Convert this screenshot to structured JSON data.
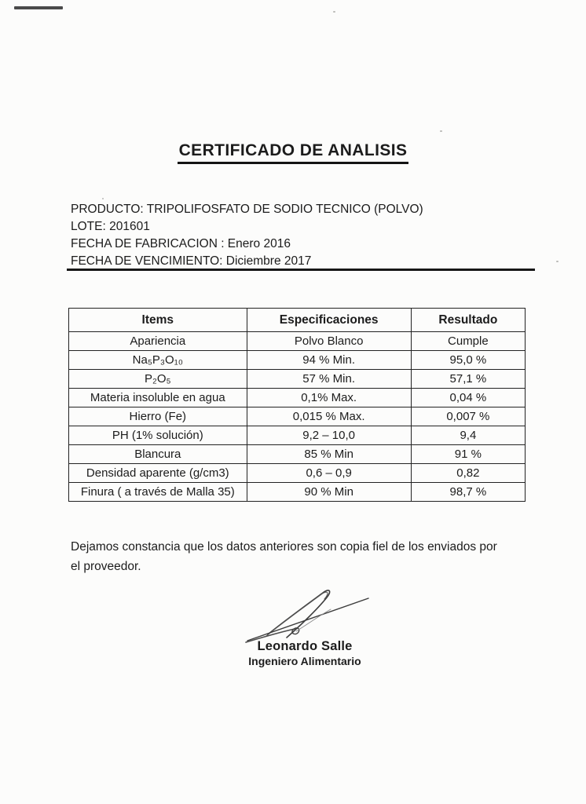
{
  "page": {
    "title": "CERTIFICADO DE ANALISIS"
  },
  "product_info": {
    "lines": [
      "PRODUCTO: TRIPOLIFOSFATO DE SODIO TECNICO (POLVO)",
      "LOTE: 201601",
      "FECHA DE FABRICACION : Enero 2016",
      "FECHA DE VENCIMIENTO: Diciembre 2017"
    ]
  },
  "table": {
    "headers": [
      "Items",
      "Especificaciones",
      "Resultado"
    ],
    "rows": [
      [
        "Apariencia",
        "Polvo Blanco",
        "Cumple"
      ],
      [
        "Na₅P₃O₁₀",
        "94 % Min.",
        "95,0 %"
      ],
      [
        "P₂O₅",
        "57 % Min.",
        "57,1 %"
      ],
      [
        "Materia insoluble en agua",
        "0,1% Max.",
        "0,04 %"
      ],
      [
        "Hierro (Fe)",
        "0,015 % Max.",
        "0,007 %"
      ],
      [
        "PH (1% solución)",
        "9,2 – 10,0",
        "9,4"
      ],
      [
        "Blancura",
        "85 % Min",
        "91 %"
      ],
      [
        "Densidad aparente (g/cm3)",
        "0,6 – 0,9",
        "0,82"
      ],
      [
        "Finura ( a través de Malla 35)",
        "90 % Min",
        "98,7 %"
      ]
    ]
  },
  "footer": {
    "note": "Dejamos constancia que los datos anteriores son copia fiel de los enviados por el proveedor.",
    "signer_name": "Leonardo Salle",
    "signer_title": "Ingeniero Alimentario"
  },
  "colors": {
    "ink": "#1c1c1c",
    "paper": "#fcfcfb",
    "table_border": "#222222"
  }
}
